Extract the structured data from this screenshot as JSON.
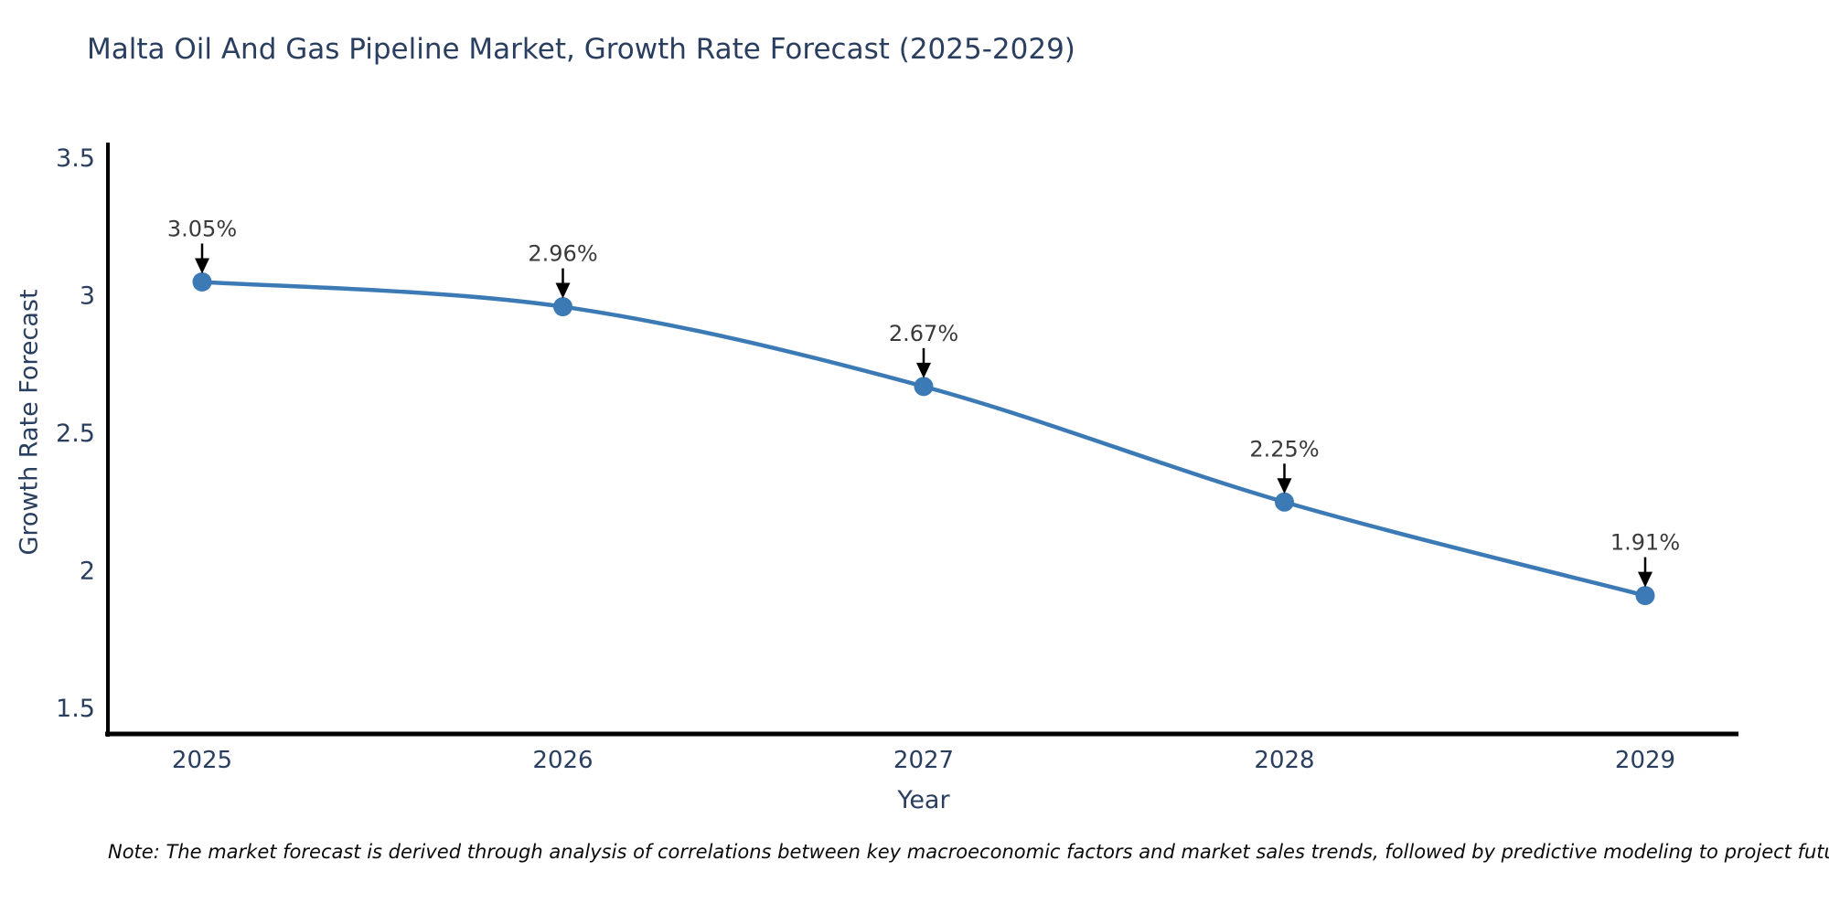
{
  "title": "Malta Oil And Gas Pipeline Market, Growth Rate Forecast (2025-2029)",
  "note": "Note: The market forecast is derived through analysis of correlations between key macroeconomic factors and market sales trends, followed by predictive modeling to project future sales",
  "chart_data": {
    "type": "line",
    "title": "Malta Oil And Gas Pipeline Market, Growth Rate Forecast (2025-2029)",
    "xlabel": "Year",
    "ylabel": "Growth Rate Forecast",
    "x": [
      2025,
      2026,
      2027,
      2028,
      2029
    ],
    "categories": [
      "2025",
      "2026",
      "2027",
      "2028",
      "2029"
    ],
    "series": [
      {
        "name": "Growth Rate Forecast",
        "values": [
          3.05,
          2.96,
          2.67,
          2.25,
          1.91
        ]
      }
    ],
    "point_labels": [
      "3.05%",
      "2.96%",
      "2.67%",
      "2.25%",
      "1.91%"
    ],
    "xlim": [
      2024.74,
      2029.26
    ],
    "ylim": [
      1.41,
      3.56
    ],
    "yticks": [
      3.5,
      3,
      2.5,
      2,
      1.5
    ],
    "ytick_labels": [
      "3.5",
      "3",
      "2.5",
      "2",
      "1.5"
    ],
    "xtick_labels": [
      "2025",
      "2026",
      "2027",
      "2028",
      "2029"
    ],
    "grid": false,
    "legend_position": "none",
    "line_shape": "spline",
    "colors": {
      "line": "#3c7ab6",
      "marker": "#3c7ab6",
      "axis_line": "#000000",
      "tick_text": "#2a3f5f",
      "title_text": "#2a3f5f",
      "annotation_text": "#3a3a3a",
      "annotation_arrow": "#000000",
      "background": "#ffffff"
    }
  }
}
